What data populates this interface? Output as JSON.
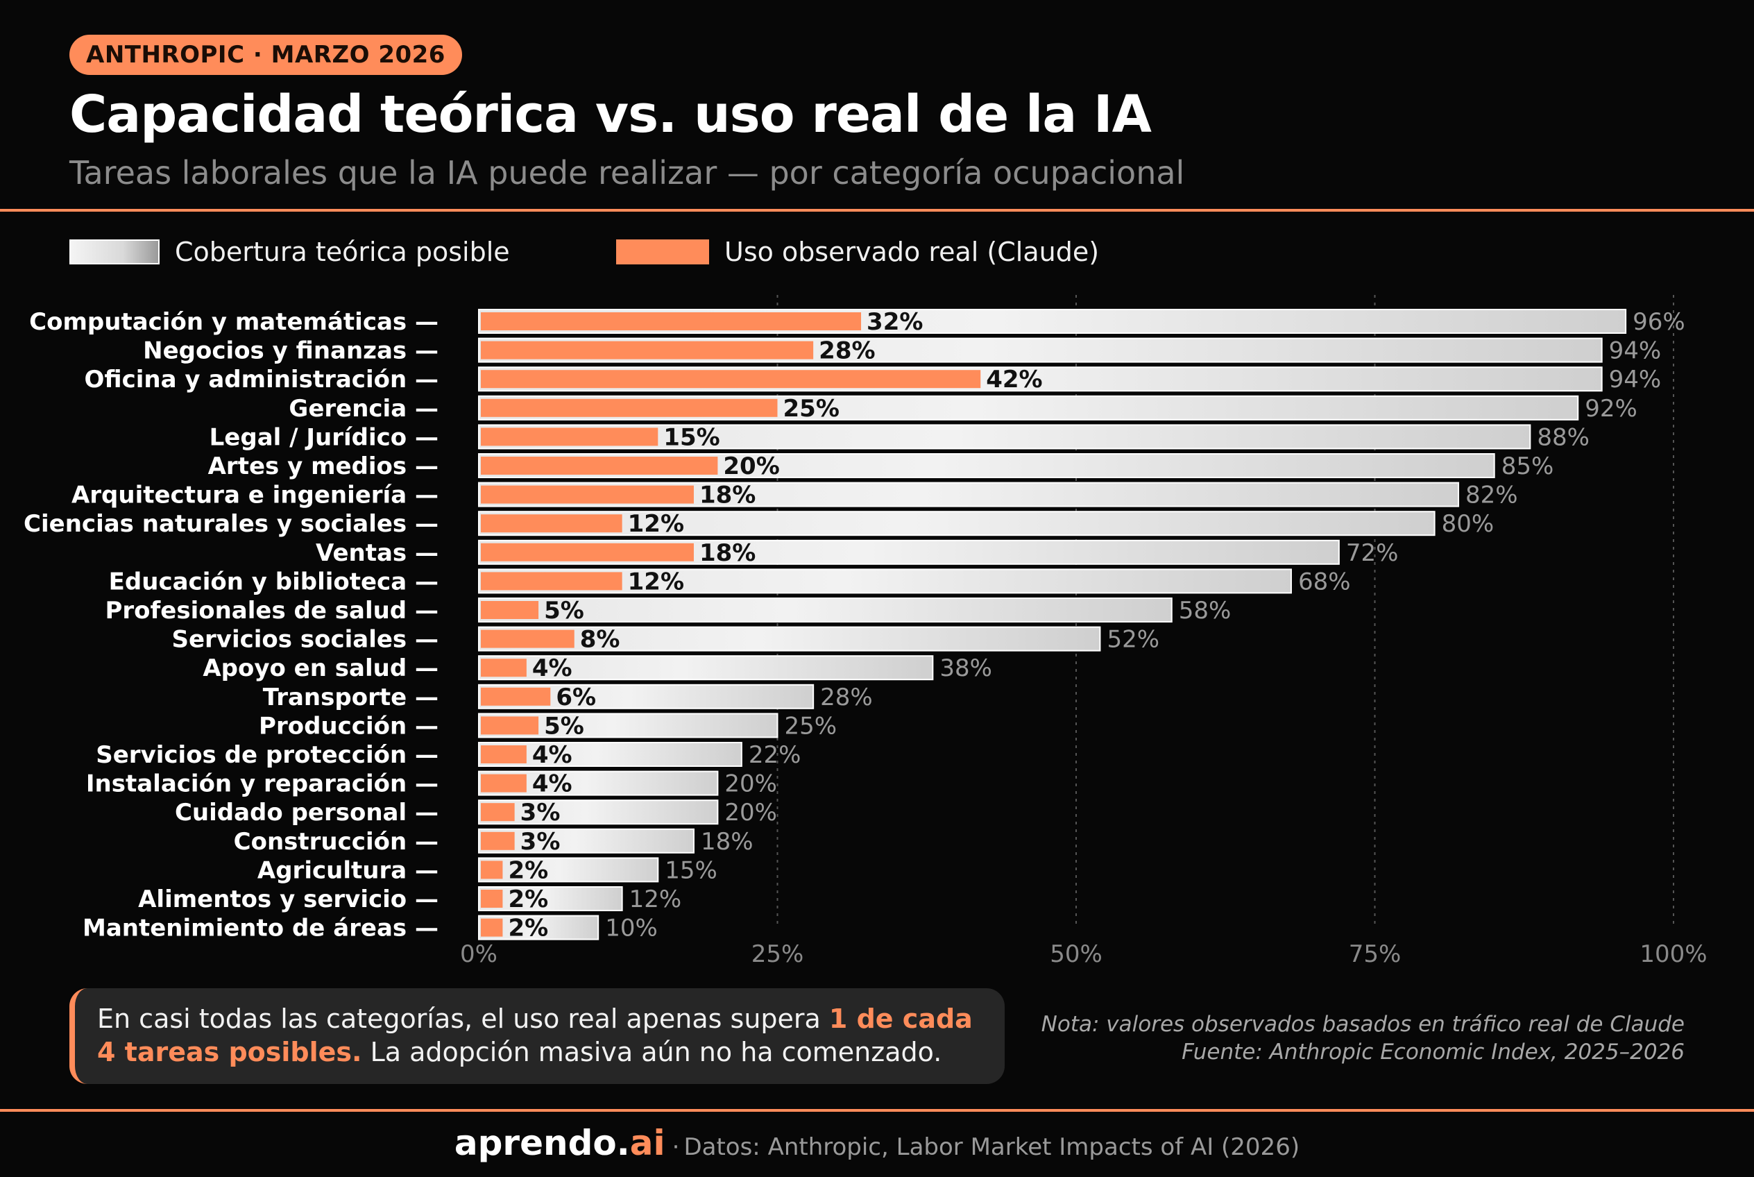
{
  "header": {
    "badge": "ANTHROPIC · MARZO 2026",
    "title": "Capacidad teórica vs. uso real de la IA",
    "subtitle": "Tareas laborales que la IA puede realizar — por categoría ocupacional"
  },
  "legend": {
    "theory": "Cobertura teórica posible",
    "real": "Uso observado real (Claude)"
  },
  "colors": {
    "accent": "#ff8c5a",
    "background": "#070707",
    "theory_bar": "#d9d9d9"
  },
  "chart_data": {
    "type": "bar",
    "orientation": "horizontal",
    "title": "Capacidad teórica vs. uso real de la IA",
    "xlim": [
      0,
      100
    ],
    "x_ticks": [
      "0%",
      "25%",
      "50%",
      "75%",
      "100%"
    ],
    "grid": "vertical dashed at 25%, 50%, 75%, 100%",
    "categories": [
      "Computación y matemáticas",
      "Negocios y finanzas",
      "Oficina y administración",
      "Gerencia",
      "Legal / Jurídico",
      "Artes y medios",
      "Arquitectura e ingeniería",
      "Ciencias naturales y sociales",
      "Ventas",
      "Educación y biblioteca",
      "Profesionales de salud",
      "Servicios sociales",
      "Apoyo en salud",
      "Transporte",
      "Producción",
      "Servicios de protección",
      "Instalación y reparación",
      "Cuidado personal",
      "Construcción",
      "Agricultura",
      "Alimentos y servicio",
      "Mantenimiento de áreas"
    ],
    "series": [
      {
        "name": "Cobertura teórica posible",
        "values": [
          96,
          94,
          94,
          92,
          88,
          85,
          82,
          80,
          72,
          68,
          58,
          52,
          38,
          28,
          25,
          22,
          20,
          20,
          18,
          15,
          12,
          10
        ]
      },
      {
        "name": "Uso observado real (Claude)",
        "values": [
          32,
          28,
          42,
          25,
          15,
          20,
          18,
          12,
          18,
          12,
          5,
          8,
          4,
          6,
          5,
          4,
          4,
          3,
          3,
          2,
          2,
          2
        ]
      }
    ]
  },
  "callout": {
    "text_before": "En casi todas las categorías, el uso real apenas supera ",
    "highlight": "1 de cada 4 tareas posibles.",
    "text_after": " La adopción masiva aún no ha comenzado."
  },
  "note": {
    "line1": "Nota: valores observados basados en tráfico real de Claude",
    "line2": "Fuente: Anthropic Economic Index, 2025–2026"
  },
  "footer": {
    "brand_main": "aprendo.",
    "brand_accent": "ai",
    "separator": "·",
    "source": "Datos: Anthropic, Labor Market Impacts of AI (2026)"
  }
}
